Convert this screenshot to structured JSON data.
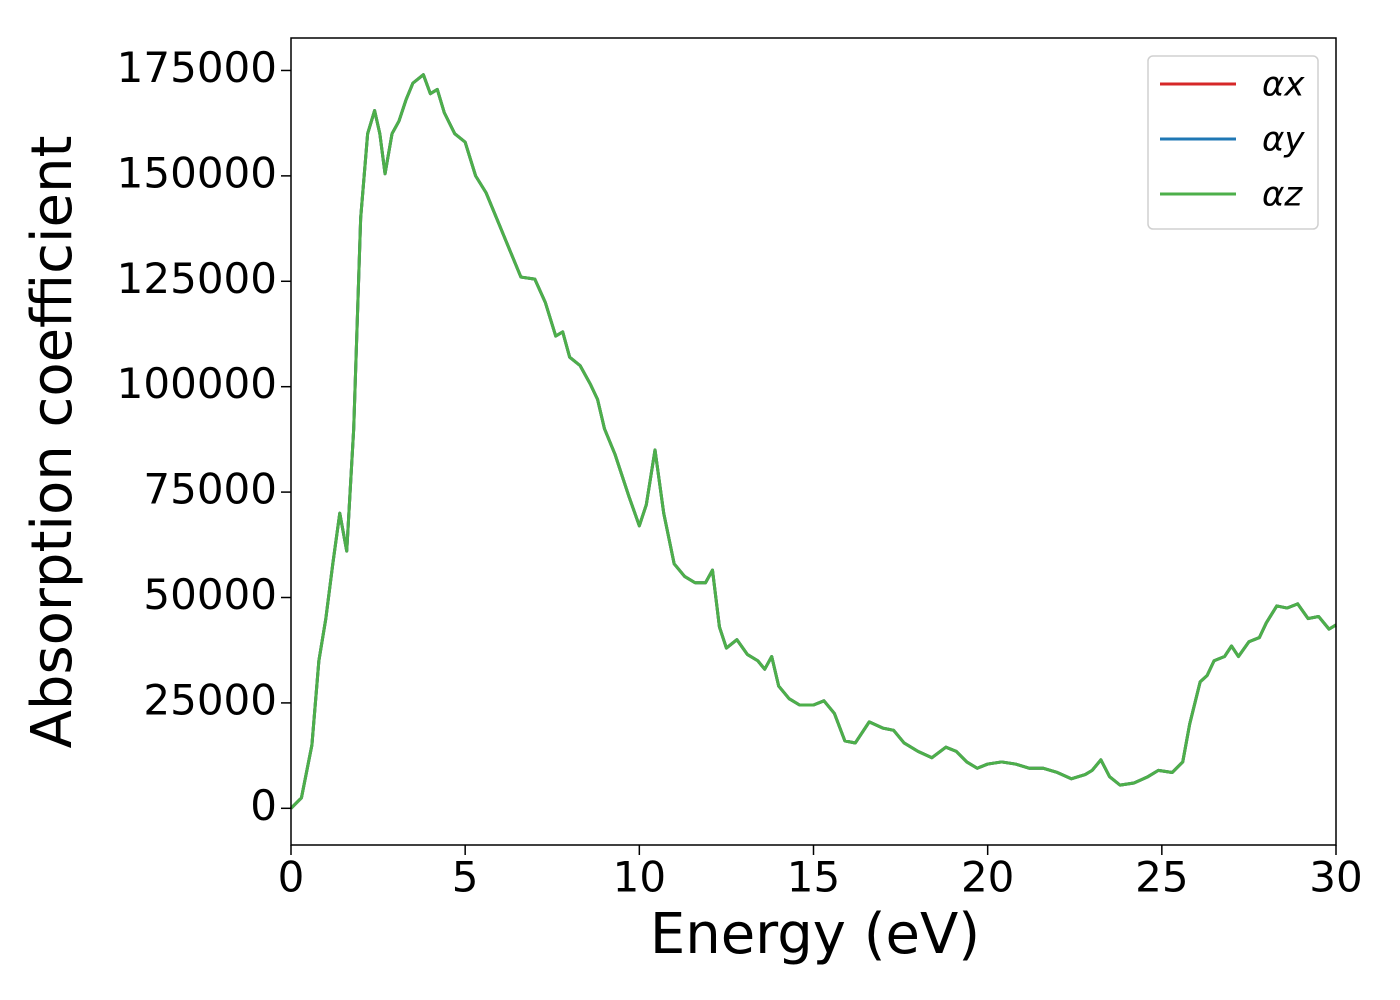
{
  "chart_data": {
    "type": "line",
    "xlabel": "Energy (eV)",
    "ylabel": "Absorption coefficient",
    "x": [
      0,
      0.3,
      0.6,
      0.8,
      1.0,
      1.2,
      1.4,
      1.6,
      1.8,
      2.0,
      2.2,
      2.4,
      2.55,
      2.7,
      2.9,
      3.1,
      3.3,
      3.5,
      3.8,
      4.0,
      4.2,
      4.4,
      4.7,
      5.0,
      5.3,
      5.6,
      6.0,
      6.3,
      6.6,
      7.0,
      7.3,
      7.6,
      7.8,
      8.0,
      8.3,
      8.6,
      8.8,
      9.0,
      9.3,
      9.5,
      9.7,
      10.0,
      10.2,
      10.45,
      10.7,
      11.0,
      11.3,
      11.6,
      11.9,
      12.1,
      12.3,
      12.5,
      12.8,
      13.1,
      13.4,
      13.6,
      13.8,
      14.0,
      14.3,
      14.6,
      15.0,
      15.3,
      15.6,
      15.9,
      16.2,
      16.6,
      17.0,
      17.3,
      17.6,
      18.0,
      18.4,
      18.8,
      19.1,
      19.4,
      19.7,
      20.0,
      20.4,
      20.8,
      21.2,
      21.6,
      22.0,
      22.4,
      22.8,
      23.0,
      23.25,
      23.5,
      23.8,
      24.2,
      24.6,
      24.9,
      25.3,
      25.6,
      25.8,
      26.1,
      26.3,
      26.5,
      26.8,
      27.0,
      27.2,
      27.5,
      27.8,
      28.0,
      28.3,
      28.6,
      28.9,
      29.2,
      29.5,
      29.8,
      30.0
    ],
    "series": [
      {
        "name": "αx",
        "color": "#d62728",
        "values": [
          0,
          2500,
          15000,
          35000,
          45000,
          58000,
          70000,
          61000,
          90000,
          140000,
          160000,
          165500,
          160000,
          150500,
          160000,
          163000,
          168000,
          172000,
          174000,
          169500,
          170500,
          165000,
          160000,
          158000,
          150000,
          146000,
          138000,
          132000,
          126000,
          125500,
          120000,
          112000,
          113000,
          107000,
          105000,
          100500,
          97000,
          90000,
          84000,
          79000,
          74000,
          67000,
          72000,
          85000,
          70000,
          58000,
          55000,
          53500,
          53500,
          56500,
          43000,
          38000,
          40000,
          36500,
          35000,
          33000,
          36000,
          29000,
          26000,
          24500,
          24500,
          25500,
          22500,
          16000,
          15500,
          20500,
          19000,
          18500,
          15500,
          13500,
          12000,
          14500,
          13500,
          11000,
          9500,
          10500,
          11000,
          10500,
          9500,
          9500,
          8500,
          7000,
          8000,
          9000,
          11500,
          7500,
          5500,
          6000,
          7500,
          9000,
          8500,
          11000,
          20000,
          30000,
          31500,
          35000,
          36000,
          38500,
          36000,
          39500,
          40500,
          44000,
          48000,
          47500,
          48500,
          45000,
          45500,
          42500,
          43500
        ]
      },
      {
        "name": "αy",
        "color": "#1f77b4",
        "values": [
          0,
          2500,
          15000,
          35000,
          45000,
          58000,
          70000,
          61000,
          90000,
          140000,
          160000,
          165500,
          160000,
          150500,
          160000,
          163000,
          168000,
          172000,
          174000,
          169500,
          170500,
          165000,
          160000,
          158000,
          150000,
          146000,
          138000,
          132000,
          126000,
          125500,
          120000,
          112000,
          113000,
          107000,
          105000,
          100500,
          97000,
          90000,
          84000,
          79000,
          74000,
          67000,
          72000,
          85000,
          70000,
          58000,
          55000,
          53500,
          53500,
          56500,
          43000,
          38000,
          40000,
          36500,
          35000,
          33000,
          36000,
          29000,
          26000,
          24500,
          24500,
          25500,
          22500,
          16000,
          15500,
          20500,
          19000,
          18500,
          15500,
          13500,
          12000,
          14500,
          13500,
          11000,
          9500,
          10500,
          11000,
          10500,
          9500,
          9500,
          8500,
          7000,
          8000,
          9000,
          11500,
          7500,
          5500,
          6000,
          7500,
          9000,
          8500,
          11000,
          20000,
          30000,
          31500,
          35000,
          36000,
          38500,
          36000,
          39500,
          40500,
          44000,
          48000,
          47500,
          48500,
          45000,
          45500,
          42500,
          43500
        ]
      },
      {
        "name": "αz",
        "color": "#4daf4a",
        "values": [
          0,
          2500,
          15000,
          35000,
          45000,
          58000,
          70000,
          61000,
          90000,
          140000,
          160000,
          165500,
          160000,
          150500,
          160000,
          163000,
          168000,
          172000,
          174000,
          169500,
          170500,
          165000,
          160000,
          158000,
          150000,
          146000,
          138000,
          132000,
          126000,
          125500,
          120000,
          112000,
          113000,
          107000,
          105000,
          100500,
          97000,
          90000,
          84000,
          79000,
          74000,
          67000,
          72000,
          85000,
          70000,
          58000,
          55000,
          53500,
          53500,
          56500,
          43000,
          38000,
          40000,
          36500,
          35000,
          33000,
          36000,
          29000,
          26000,
          24500,
          24500,
          25500,
          22500,
          16000,
          15500,
          20500,
          19000,
          18500,
          15500,
          13500,
          12000,
          14500,
          13500,
          11000,
          9500,
          10500,
          11000,
          10500,
          9500,
          9500,
          8500,
          7000,
          8000,
          9000,
          11500,
          7500,
          5500,
          6000,
          7500,
          9000,
          8500,
          11000,
          20000,
          30000,
          31500,
          35000,
          36000,
          38500,
          36000,
          39500,
          40500,
          44000,
          48000,
          47500,
          48500,
          45000,
          45500,
          42500,
          43500
        ]
      }
    ],
    "xlim": [
      0,
      30
    ],
    "xticks": [
      0,
      5,
      10,
      15,
      20,
      25,
      30
    ],
    "ylim": [
      -8700,
      182700
    ],
    "yticks": [
      0,
      25000,
      50000,
      75000,
      100000,
      125000,
      150000,
      175000
    ],
    "legend": "upper right",
    "grid": false
  }
}
